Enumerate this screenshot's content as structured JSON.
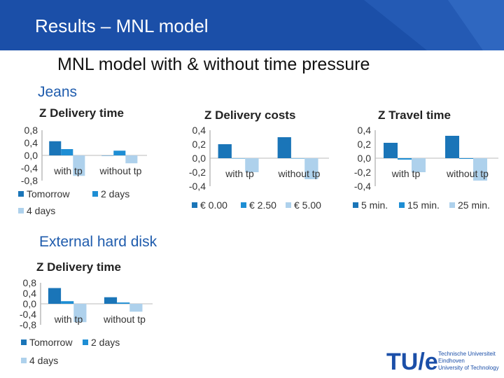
{
  "header": {
    "title": "Results – MNL model"
  },
  "subtitle": "MNL model with & without time pressure",
  "sections": {
    "jeans": "Jeans",
    "disk": "External hard disk"
  },
  "colors": {
    "banner": "#1b4fa8",
    "dark": "#1a75b8",
    "mid": "#1e8ed4",
    "light": "#aed1ec",
    "section": "#1f5cad"
  },
  "logo": {
    "mark": "TU/e",
    "line1": "Technische Universiteit",
    "line2": "Eindhoven",
    "line3": "University of Technology"
  },
  "chart_data": [
    {
      "id": "jeans-delivery-time",
      "type": "bar",
      "title": "Z Delivery time",
      "categories": [
        "with tp",
        "without tp"
      ],
      "yticks": [
        "0,8",
        "0,4",
        "0,0",
        "-0,4",
        "-0,8"
      ],
      "ylim": [
        -0.8,
        0.8
      ],
      "series": [
        {
          "name": "Tomorrow",
          "values": [
            0.45,
            0.0
          ],
          "color": "#1a75b8"
        },
        {
          "name": "2 days",
          "values": [
            0.2,
            0.15
          ],
          "color": "#1e8ed4"
        },
        {
          "name": "4 days",
          "values": [
            -0.65,
            -0.25
          ],
          "color": "#aed1ec"
        }
      ],
      "legend": "bottom"
    },
    {
      "id": "jeans-delivery-costs",
      "type": "bar",
      "title": "Z Delivery costs",
      "categories": [
        "with tp",
        "without tp"
      ],
      "yticks": [
        "0,4",
        "0,2",
        "0,0",
        "-0,2",
        "-0,4"
      ],
      "ylim": [
        -0.4,
        0.4
      ],
      "series": [
        {
          "name": "€ 0.00",
          "values": [
            0.2,
            0.3
          ],
          "color": "#1a75b8"
        },
        {
          "name": "€ 2.50",
          "values": [
            0.0,
            0.0
          ],
          "color": "#1e8ed4"
        },
        {
          "name": "€ 5.00",
          "values": [
            -0.2,
            -0.3
          ],
          "color": "#aed1ec"
        }
      ],
      "legend": "bottom"
    },
    {
      "id": "jeans-travel-time",
      "type": "bar",
      "title": "Z Travel time",
      "categories": [
        "with tp",
        "without tp"
      ],
      "yticks": [
        "0,4",
        "0,2",
        "0,0",
        "-0,2",
        "-0,4"
      ],
      "ylim": [
        -0.4,
        0.4
      ],
      "series": [
        {
          "name": "5 min.",
          "values": [
            0.22,
            0.32
          ],
          "color": "#1a75b8"
        },
        {
          "name": "15 min.",
          "values": [
            -0.02,
            -0.01
          ],
          "color": "#1e8ed4"
        },
        {
          "name": "25 min.",
          "values": [
            -0.2,
            -0.32
          ],
          "color": "#aed1ec"
        }
      ],
      "legend": "bottom"
    },
    {
      "id": "disk-delivery-time",
      "type": "bar",
      "title": "Z Delivery time",
      "categories": [
        "with tp",
        "without tp"
      ],
      "yticks": [
        "0,8",
        "0,4",
        "0,0",
        "-0,4",
        "-0,8"
      ],
      "ylim": [
        -0.8,
        0.8
      ],
      "series": [
        {
          "name": "Tomorrow",
          "values": [
            0.6,
            0.25
          ],
          "color": "#1a75b8"
        },
        {
          "name": "2 days",
          "values": [
            0.1,
            0.05
          ],
          "color": "#1e8ed4"
        },
        {
          "name": "4 days",
          "values": [
            -0.7,
            -0.3
          ],
          "color": "#aed1ec"
        }
      ],
      "legend": "bottom"
    }
  ]
}
